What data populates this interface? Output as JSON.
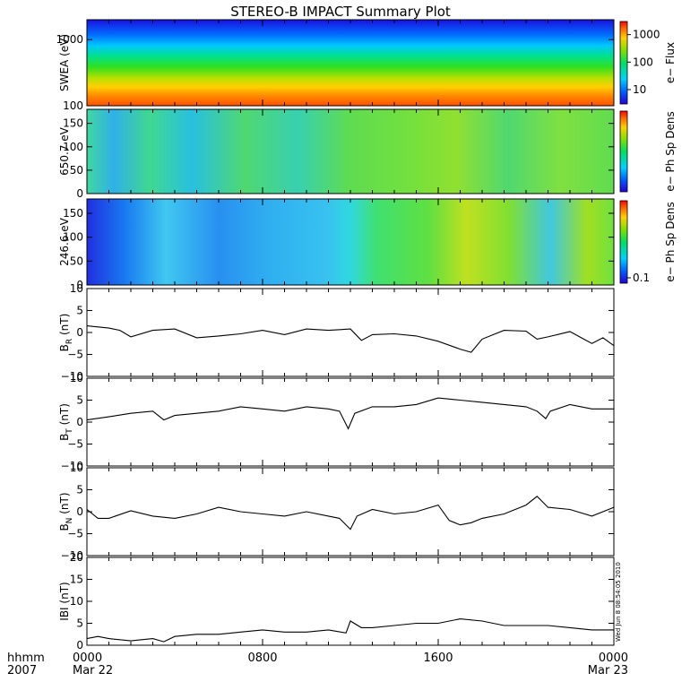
{
  "title": "STEREO-B IMPACT Summary Plot",
  "chart_data": [
    {
      "type": "heatmap",
      "ylabel": "SWEA (eV)",
      "ylim": [
        100,
        2000
      ],
      "y_scale": "log",
      "y_ticks": [
        {
          "value": 100,
          "label": "100"
        },
        {
          "value": 1000,
          "label": "1000"
        }
      ],
      "colorbar": {
        "label": "e− Flux",
        "scale": "log",
        "range": [
          3,
          3000
        ],
        "ticks": [
          {
            "value": 10,
            "label": "10"
          },
          {
            "value": 100,
            "label": "100"
          },
          {
            "value": 1000,
            "label": "1000"
          }
        ]
      }
    },
    {
      "type": "heatmap",
      "ylabel": "650.7 eV",
      "ylim": [
        0,
        180
      ],
      "y_ticks": [
        {
          "value": 0,
          "label": "0"
        },
        {
          "value": 50,
          "label": "50"
        },
        {
          "value": 100,
          "label": "100"
        },
        {
          "value": 150,
          "label": "150"
        }
      ],
      "colorbar": {
        "label": "e− Ph Sp Dens",
        "ticks": []
      }
    },
    {
      "type": "heatmap",
      "ylabel": "246.6 eV",
      "ylim": [
        0,
        180
      ],
      "y_ticks": [
        {
          "value": 0,
          "label": "0"
        },
        {
          "value": 50,
          "label": "50"
        },
        {
          "value": 100,
          "label": "100"
        },
        {
          "value": 150,
          "label": "150"
        }
      ],
      "colorbar": {
        "label": "e− Ph Sp Dens",
        "ticks": [
          {
            "value": 0.1,
            "label": "0.1"
          }
        ]
      }
    },
    {
      "type": "line",
      "ylabel": "B",
      "ylabel_sub": "R",
      "ylabel_unit": " (nT)",
      "ylim": [
        -10,
        10
      ],
      "y_ticks": [
        {
          "value": -10,
          "label": "−10"
        },
        {
          "value": -5,
          "label": "−5"
        },
        {
          "value": 0,
          "label": "0"
        },
        {
          "value": 5,
          "label": "5"
        },
        {
          "value": 10,
          "label": "10"
        }
      ],
      "x_hours": [
        0,
        1,
        1.5,
        2,
        3,
        4,
        5,
        6,
        7,
        8,
        9,
        10,
        11,
        12,
        12.5,
        13,
        14,
        15,
        16,
        17,
        17.5,
        18,
        19,
        20,
        20.5,
        21,
        22,
        23,
        23.5,
        24
      ],
      "values": [
        1.5,
        1.0,
        0.5,
        -1.0,
        0.5,
        0.8,
        -1.2,
        -0.8,
        -0.3,
        0.5,
        -0.5,
        0.8,
        0.5,
        0.8,
        -1.8,
        -0.5,
        -0.3,
        -0.8,
        -2.0,
        -3.8,
        -4.5,
        -1.5,
        0.5,
        0.3,
        -1.5,
        -1.0,
        0.2,
        -2.5,
        -1.2,
        -3.0
      ]
    },
    {
      "type": "line",
      "ylabel": "B",
      "ylabel_sub": "T",
      "ylabel_unit": " (nT)",
      "ylim": [
        -10,
        10
      ],
      "y_ticks": [
        {
          "value": -10,
          "label": "−10"
        },
        {
          "value": -5,
          "label": "−5"
        },
        {
          "value": 0,
          "label": "0"
        },
        {
          "value": 5,
          "label": "5"
        },
        {
          "value": 10,
          "label": "10"
        }
      ],
      "x_hours": [
        0,
        1,
        2,
        3,
        3.5,
        4,
        5,
        6,
        7,
        8,
        9,
        10,
        11,
        11.5,
        11.9,
        12.2,
        13,
        14,
        15,
        16,
        17,
        18,
        19,
        20,
        20.5,
        20.9,
        21.1,
        22,
        23,
        24
      ],
      "values": [
        0.5,
        1.2,
        2.0,
        2.5,
        0.5,
        1.5,
        2.0,
        2.5,
        3.5,
        3.0,
        2.5,
        3.5,
        3.0,
        2.5,
        -1.5,
        2.0,
        3.5,
        3.5,
        4.0,
        5.5,
        5.0,
        4.5,
        4.0,
        3.5,
        2.5,
        0.8,
        2.5,
        4.0,
        3.0,
        3.0
      ]
    },
    {
      "type": "line",
      "ylabel": "B",
      "ylabel_sub": "N",
      "ylabel_unit": " (nT)",
      "ylim": [
        -10,
        10
      ],
      "y_ticks": [
        {
          "value": -10,
          "label": "−10"
        },
        {
          "value": -5,
          "label": "−5"
        },
        {
          "value": 0,
          "label": "0"
        },
        {
          "value": 5,
          "label": "5"
        },
        {
          "value": 10,
          "label": "10"
        }
      ],
      "x_hours": [
        0,
        0.5,
        1,
        2,
        3,
        4,
        5,
        6,
        7,
        8,
        9,
        10,
        11,
        11.5,
        12,
        12.3,
        13,
        14,
        15,
        16,
        16.5,
        17,
        17.5,
        18,
        19,
        20,
        20.5,
        21,
        22,
        23,
        24
      ],
      "values": [
        0.5,
        -1.5,
        -1.5,
        0.2,
        -1.0,
        -1.5,
        -0.5,
        1.0,
        0.0,
        -0.5,
        -1.0,
        0.0,
        -1.0,
        -1.5,
        -4.0,
        -1.0,
        0.5,
        -0.5,
        0.0,
        1.5,
        -2.0,
        -3.0,
        -2.5,
        -1.5,
        -0.5,
        1.5,
        3.5,
        1.0,
        0.5,
        -1.0,
        1.0
      ]
    },
    {
      "type": "line",
      "ylabel": "IBI (nT)",
      "ylim": [
        0,
        20
      ],
      "y_ticks": [
        {
          "value": 0,
          "label": "0"
        },
        {
          "value": 5,
          "label": "5"
        },
        {
          "value": 10,
          "label": "10"
        },
        {
          "value": 15,
          "label": "15"
        },
        {
          "value": 20,
          "label": "20"
        }
      ],
      "x_hours": [
        0,
        0.5,
        1,
        2,
        3,
        3.5,
        4,
        5,
        6,
        7,
        8,
        9,
        10,
        11,
        11.8,
        12,
        12.5,
        13,
        14,
        15,
        16,
        17,
        18,
        19,
        20,
        21,
        22,
        23,
        24
      ],
      "values": [
        1.5,
        2.0,
        1.5,
        1.0,
        1.5,
        0.8,
        2.0,
        2.5,
        2.5,
        3.0,
        3.5,
        3.0,
        3.0,
        3.5,
        2.8,
        5.5,
        4.0,
        4.0,
        4.5,
        5.0,
        5.0,
        6.0,
        5.5,
        4.5,
        4.5,
        4.5,
        4.0,
        3.5,
        3.5
      ]
    }
  ],
  "x_axis": {
    "corner_labels": [
      "hhmm",
      "2007"
    ],
    "ticks": [
      {
        "hour": 0,
        "label": "0000",
        "date": "Mar 22"
      },
      {
        "hour": 8,
        "label": "0800",
        "date": ""
      },
      {
        "hour": 16,
        "label": "1600",
        "date": ""
      },
      {
        "hour": 24,
        "label": "0000",
        "date": "Mar 23"
      }
    ]
  },
  "timestamp": "Wed Jun  8 08:54:05 2010"
}
